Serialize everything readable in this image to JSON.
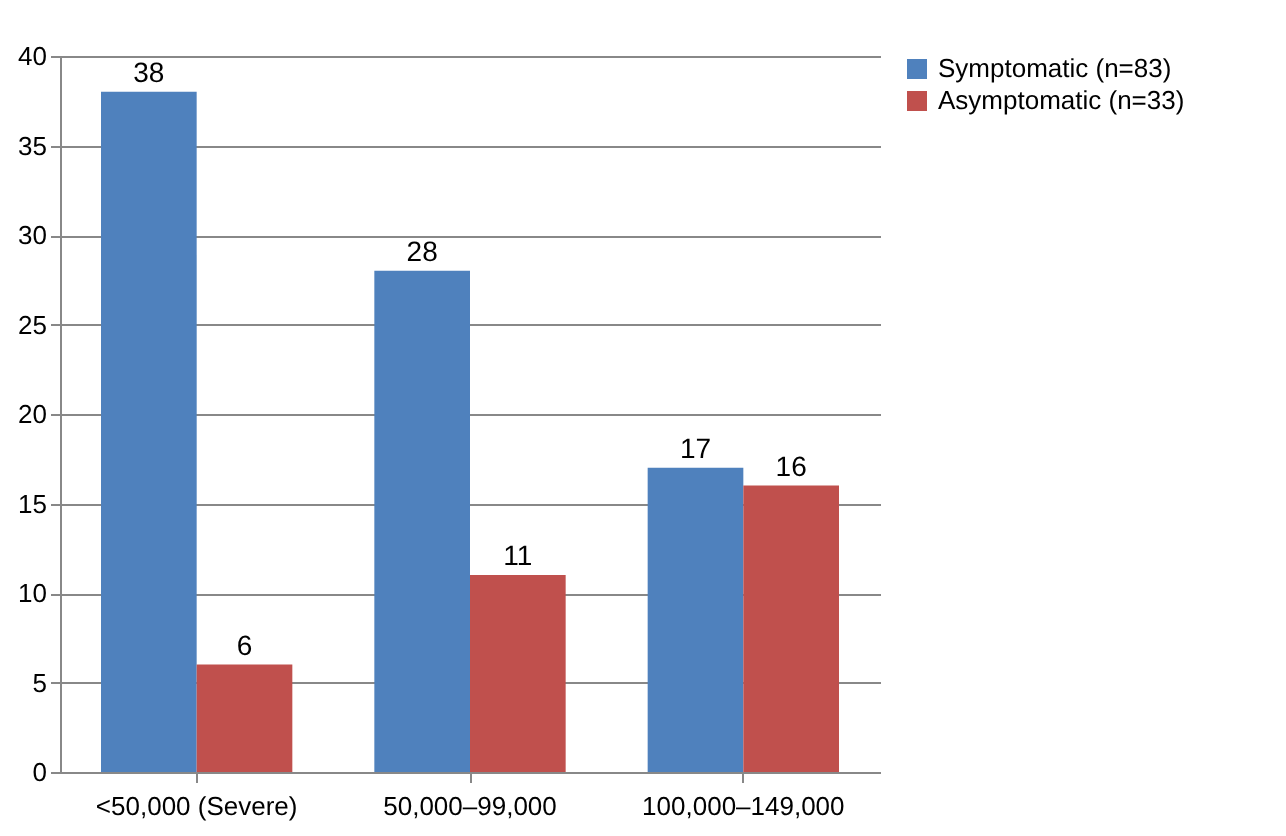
{
  "chart_data": {
    "type": "bar",
    "categories": [
      "<50,000 (Severe)",
      "50,000–99,000",
      "100,000–149,000"
    ],
    "series": [
      {
        "name": "Symptomatic (n=83)",
        "color": "#4f81bd",
        "values": [
          38,
          28,
          17
        ]
      },
      {
        "name": "Asymptomatic (n=33)",
        "color": "#c0504d",
        "values": [
          6,
          11,
          16
        ]
      }
    ],
    "ylim": [
      0,
      40
    ],
    "yticks": [
      0,
      5,
      10,
      15,
      20,
      25,
      30,
      35,
      40
    ],
    "grid": "y",
    "legend": "right",
    "data_labels": true
  }
}
